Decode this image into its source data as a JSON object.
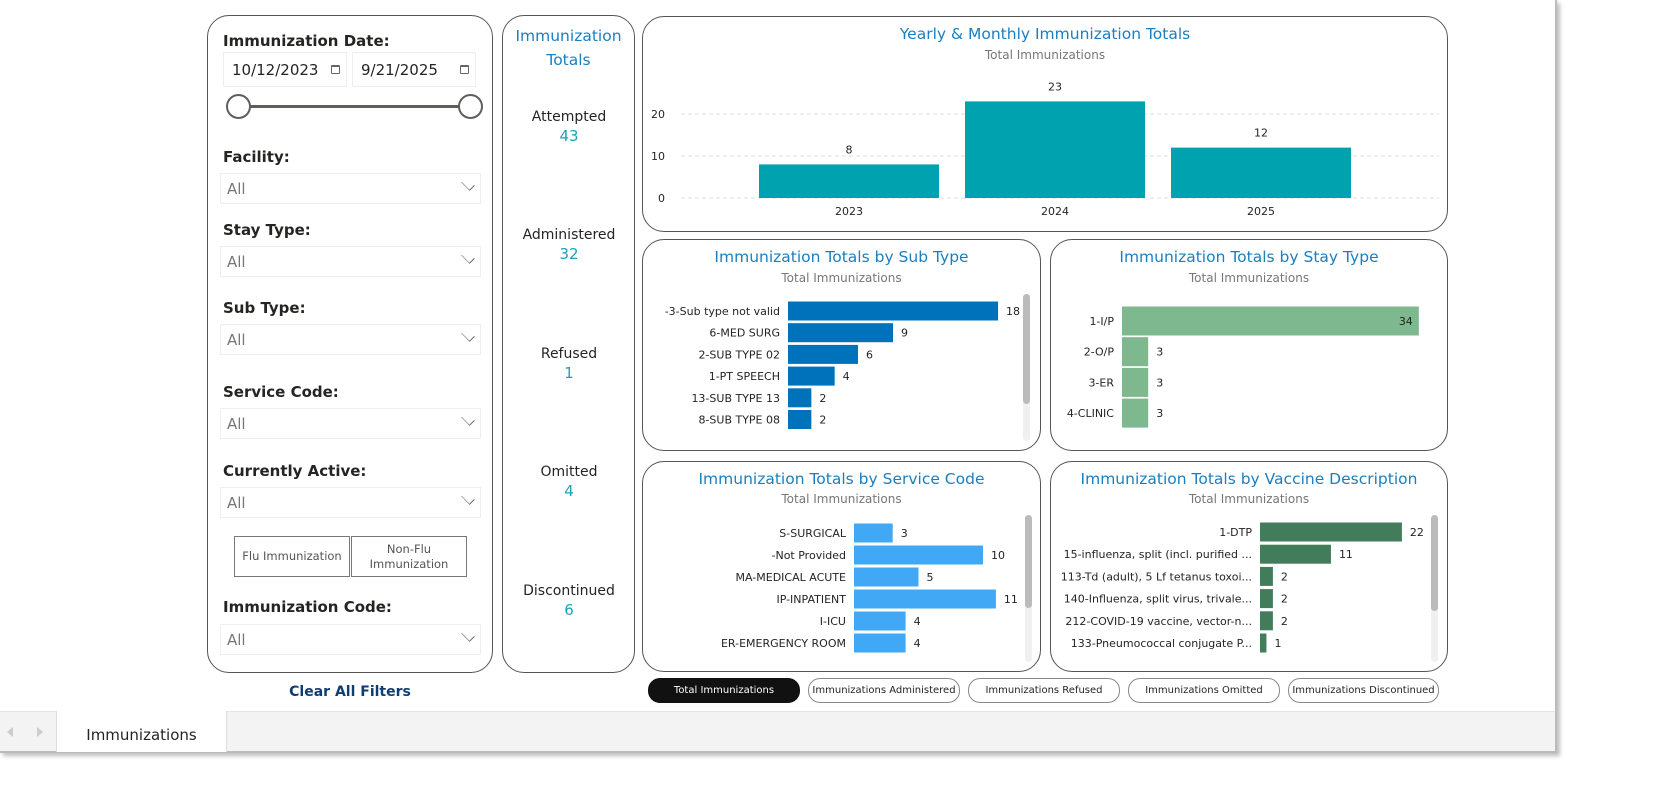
{
  "filters": {
    "date_label": "Immunization Date:",
    "date_start": "10/12/2023",
    "date_end": "9/21/2025",
    "date_range_fraction": [
      0,
      1
    ],
    "facility_label": "Facility:",
    "facility_value": "All",
    "stay_type_label": "Stay Type:",
    "stay_type_value": "All",
    "sub_type_label": "Sub Type:",
    "sub_type_value": "All",
    "service_code_label": "Service Code:",
    "service_code_value": "All",
    "active_label": "Currently Active:",
    "active_value": "All",
    "flu_button": "Flu Immunization",
    "non_flu_button": "Non-Flu Immunization",
    "code_label": "Immunization Code:",
    "code_value": "All",
    "clear_all": "Clear All Filters"
  },
  "totals": {
    "title": "Immunization Totals",
    "items": [
      {
        "label": "Attempted",
        "value": "43"
      },
      {
        "label": "Administered",
        "value": "32"
      },
      {
        "label": "Refused",
        "value": "1"
      },
      {
        "label": "Omitted",
        "value": "4"
      },
      {
        "label": "Discontinued",
        "value": "6"
      }
    ]
  },
  "chart_data": [
    {
      "type": "bar",
      "id": "yearly",
      "title": "Yearly & Monthly Immunization Totals",
      "subtitle": "Total Immunizations",
      "categories": [
        "2023",
        "2024",
        "2025"
      ],
      "values": [
        8,
        23,
        12
      ],
      "yticks": [
        0,
        10,
        20
      ],
      "ylim": [
        0,
        24
      ],
      "grid": true,
      "color": "#00a2b0"
    },
    {
      "type": "bar",
      "orientation": "horizontal",
      "id": "subtype",
      "title": "Immunization Totals by Sub Type",
      "subtitle": "Total Immunizations",
      "categories": [
        "-3-Sub type not valid",
        "6-MED SURG",
        "2-SUB TYPE 02",
        "1-PT SPEECH",
        "13-SUB TYPE 13",
        "8-SUB TYPE 08"
      ],
      "values": [
        18,
        9,
        6,
        4,
        2,
        2
      ],
      "color": "#0072bc"
    },
    {
      "type": "bar",
      "orientation": "horizontal",
      "id": "staytype",
      "title": "Immunization Totals by Stay Type",
      "subtitle": "Total Immunizations",
      "categories": [
        "1-I/P",
        "2-O/P",
        "3-ER",
        "4-CLINIC"
      ],
      "values": [
        34,
        3,
        3,
        3
      ],
      "color": "#7db88f"
    },
    {
      "type": "bar",
      "orientation": "horizontal",
      "id": "service",
      "title": "Immunization Totals by Service Code",
      "subtitle": "Total Immunizations",
      "categories": [
        "S-SURGICAL",
        "-Not Provided",
        "MA-MEDICAL ACUTE",
        "IP-INPATIENT",
        "I-ICU",
        "ER-EMERGENCY ROOM"
      ],
      "values": [
        3,
        10,
        5,
        11,
        4,
        4
      ],
      "color": "#41a8f5"
    },
    {
      "type": "bar",
      "orientation": "horizontal",
      "id": "vaccine",
      "title": "Immunization Totals by Vaccine Description",
      "subtitle": "Total Immunizations",
      "categories": [
        "1-DTP",
        "15-influenza, split (incl. purified ...",
        "113-Td (adult), 5 Lf tetanus toxoi...",
        "140-Influenza, split virus, trivale...",
        "212-COVID-19 vaccine, vector-n...",
        "133-Pneumococcal conjugate P..."
      ],
      "values": [
        22,
        11,
        2,
        2,
        2,
        1
      ],
      "color": "#437c5b"
    }
  ],
  "measure_buttons": [
    {
      "label": "Total Immunizations",
      "active": true
    },
    {
      "label": "Immunizations Administered",
      "active": false
    },
    {
      "label": "Immunizations Refused",
      "active": false
    },
    {
      "label": "Immunizations Omitted",
      "active": false
    },
    {
      "label": "Immunizations Discontinued",
      "active": false
    }
  ],
  "sheet_tabs": {
    "active": "Immunizations"
  }
}
